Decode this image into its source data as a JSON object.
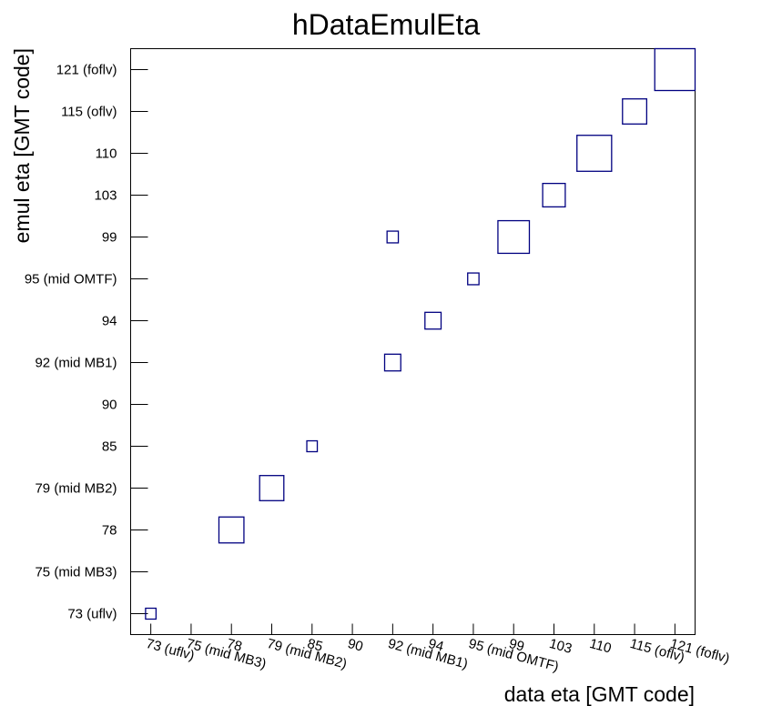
{
  "chart_data": {
    "type": "box-2d-histogram",
    "title": "hDataEmulEta",
    "xlabel": "data eta [GMT code]",
    "ylabel": "emul eta [GMT code]",
    "categories": [
      "73 (uflv)",
      "75 (mid MB3)",
      "78",
      "79 (mid MB2)",
      "85",
      "90",
      "92 (mid MB1)",
      "94",
      "95 (mid OMTF)",
      "99",
      "103",
      "110",
      "115 (oflv)",
      "121 (foflv)"
    ],
    "x_categories": [
      "73 (uflv)",
      "75 (mid MB3)",
      "78",
      "79 (mid MB2)",
      "85",
      "90",
      "92 (mid MB1)",
      "94",
      "95 (mid OMTF)",
      "99",
      "103",
      "110",
      "115 (oflv)",
      "121 (foflv)"
    ],
    "y_categories": [
      "73 (uflv)",
      "75 (mid MB3)",
      "78",
      "79 (mid MB2)",
      "85",
      "90",
      "92 (mid MB1)",
      "94",
      "95 (mid OMTF)",
      "99",
      "103",
      "110",
      "115 (oflv)",
      "121 (foflv)"
    ],
    "cells": [
      {
        "x": "73 (uflv)",
        "y": "73 (uflv)",
        "value": 0.26
      },
      {
        "x": "78",
        "y": "78",
        "value": 0.62
      },
      {
        "x": "79 (mid MB2)",
        "y": "79 (mid MB2)",
        "value": 0.6
      },
      {
        "x": "85",
        "y": "85",
        "value": 0.26
      },
      {
        "x": "92 (mid MB1)",
        "y": "92 (mid MB1)",
        "value": 0.4
      },
      {
        "x": "92 (mid MB1)",
        "y": "99",
        "value": 0.28
      },
      {
        "x": "94",
        "y": "94",
        "value": 0.4
      },
      {
        "x": "95 (mid OMTF)",
        "y": "95 (mid OMTF)",
        "value": 0.28
      },
      {
        "x": "99",
        "y": "99",
        "value": 0.78
      },
      {
        "x": "103",
        "y": "103",
        "value": 0.56
      },
      {
        "x": "110",
        "y": "110",
        "value": 0.86
      },
      {
        "x": "115 (oflv)",
        "y": "115 (oflv)",
        "value": 0.6
      },
      {
        "x": "121 (foflv)",
        "y": "121 (foflv)",
        "value": 1.0
      }
    ],
    "grid": false,
    "legend": "none",
    "colors": {
      "box": "#000080",
      "axis": "#000000"
    }
  }
}
